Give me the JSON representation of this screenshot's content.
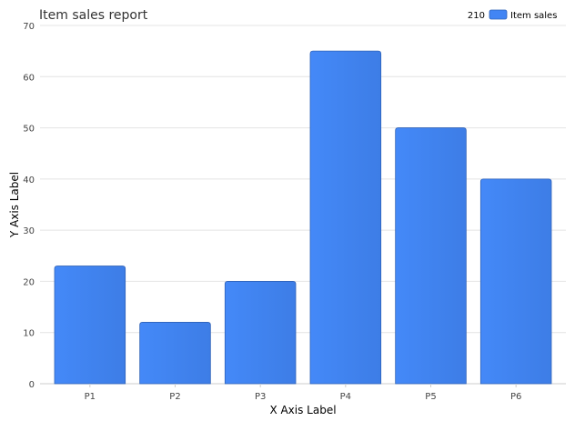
{
  "chart_data": {
    "type": "bar",
    "title": "Item sales report",
    "xlabel": "X Axis Label",
    "ylabel": "Y Axis Label",
    "categories": [
      "P1",
      "P2",
      "P3",
      "P4",
      "P5",
      "P6"
    ],
    "series": [
      {
        "name": "Item sales",
        "values": [
          23,
          12,
          20,
          65,
          50,
          40
        ],
        "color": "#4285f4"
      }
    ],
    "legend_total": "210",
    "legend_placement": "top-right",
    "ylim": [
      0,
      70
    ],
    "yticks": [
      0,
      10,
      20,
      30,
      40,
      50,
      60,
      70
    ],
    "grid": true
  }
}
